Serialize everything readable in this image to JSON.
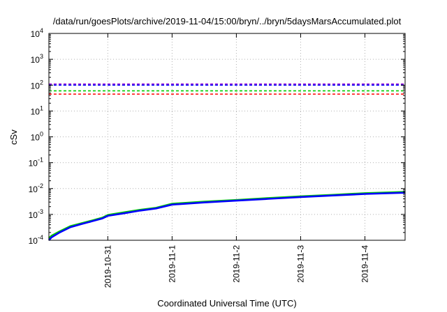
{
  "chart_data": {
    "type": "line",
    "title": "/data/run/goesPlots/archive/2019-11-04/15:00/bryn/../bryn/5daysMarsAccumulated.plot",
    "xlabel": "Coordinated Universal Time (UTC)",
    "ylabel": "cSv",
    "y_scale": "log",
    "ylim": [
      0.0001,
      10000
    ],
    "y_ticks": [
      {
        "value": 0.0001,
        "base": "10",
        "exp": "-4"
      },
      {
        "value": 0.001,
        "base": "10",
        "exp": "-3"
      },
      {
        "value": 0.01,
        "base": "10",
        "exp": "-2"
      },
      {
        "value": 0.1,
        "base": "10",
        "exp": "-1"
      },
      {
        "value": 1,
        "base": "10",
        "exp": "0"
      },
      {
        "value": 10,
        "base": "10",
        "exp": "1"
      },
      {
        "value": 100,
        "base": "10",
        "exp": "2"
      },
      {
        "value": 1000,
        "base": "10",
        "exp": "3"
      },
      {
        "value": 10000,
        "base": "10",
        "exp": "4"
      }
    ],
    "xlim": [
      "2019-10-30 02:00",
      "2019-11-04 15:00"
    ],
    "x_ticks": [
      "2019-10-31",
      "2019-11-1",
      "2019-11-2",
      "2019-11-3",
      "2019-11-4"
    ],
    "grid": true,
    "legend": "none",
    "reference_lines": [
      {
        "value": 110,
        "color": "#9400d3",
        "style": "dashed"
      },
      {
        "value": 100,
        "color": "#0000ff",
        "style": "dashed"
      },
      {
        "value": 60,
        "color": "#00cc00",
        "style": "dashed"
      },
      {
        "value": 45,
        "color": "#ff0000",
        "style": "dashed"
      }
    ],
    "series": [
      {
        "color": "#00cc00",
        "x": [
          "2019-10-30 02:00",
          "2019-10-30 03:00",
          "2019-10-30 06:00",
          "2019-10-30 10:00",
          "2019-10-30 14:00",
          "2019-10-30 18:00",
          "2019-10-30 22:00",
          "2019-10-31 00:00",
          "2019-10-31 06:00",
          "2019-10-31 12:00",
          "2019-10-31 18:00",
          "2019-11-01 00:00",
          "2019-11-01 12:00",
          "2019-11-02 00:00",
          "2019-11-02 12:00",
          "2019-11-03 00:00",
          "2019-11-03 12:00",
          "2019-11-04 00:00",
          "2019-11-04 15:00"
        ],
        "values": [
          0.00012,
          0.00015,
          0.00022,
          0.00035,
          0.00045,
          0.00058,
          0.00075,
          0.00095,
          0.0012,
          0.0015,
          0.0018,
          0.0026,
          0.0031,
          0.0036,
          0.0043,
          0.005,
          0.0057,
          0.0066,
          0.0074
        ]
      },
      {
        "color": "#0000ff",
        "x": [
          "2019-10-30 02:00",
          "2019-10-30 03:00",
          "2019-10-30 06:00",
          "2019-10-30 10:00",
          "2019-10-30 14:00",
          "2019-10-30 18:00",
          "2019-10-30 22:00",
          "2019-10-31 00:00",
          "2019-10-31 06:00",
          "2019-10-31 12:00",
          "2019-10-31 18:00",
          "2019-11-01 00:00",
          "2019-11-01 12:00",
          "2019-11-02 00:00",
          "2019-11-02 12:00",
          "2019-11-03 00:00",
          "2019-11-03 12:00",
          "2019-11-04 00:00",
          "2019-11-04 15:00"
        ],
        "values": [
          0.0001,
          0.00013,
          0.0002,
          0.00032,
          0.00042,
          0.00054,
          0.0007,
          0.00088,
          0.0011,
          0.0014,
          0.0017,
          0.0024,
          0.0029,
          0.0034,
          0.004,
          0.0047,
          0.0054,
          0.0062,
          0.0069
        ]
      }
    ]
  }
}
